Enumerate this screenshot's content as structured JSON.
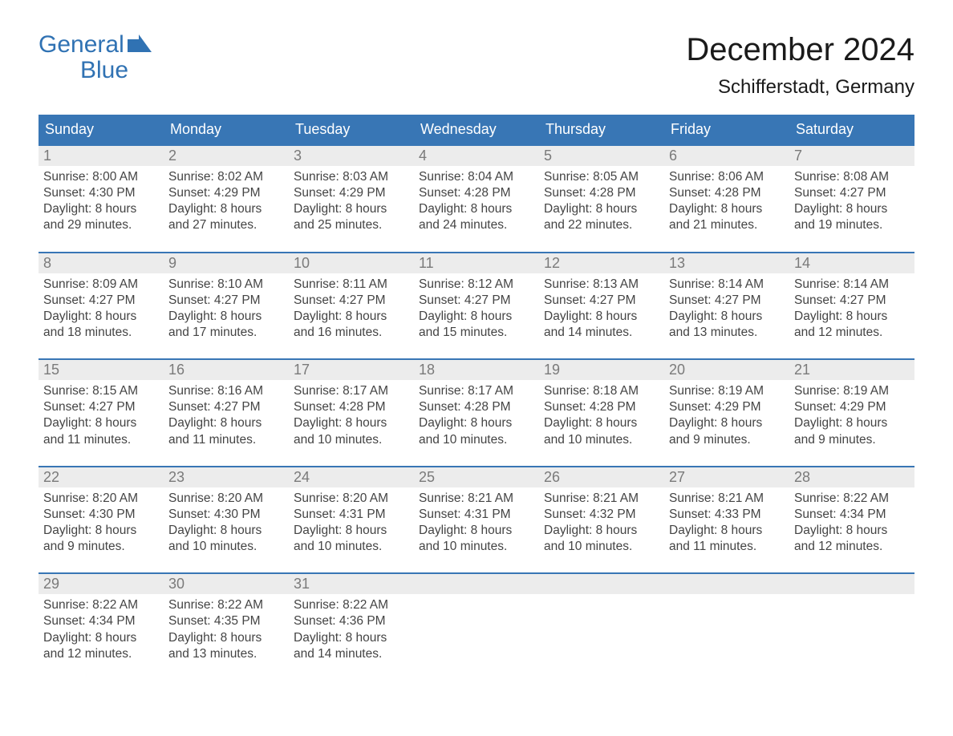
{
  "logo": {
    "word1": "General",
    "word2": "Blue",
    "brand_color": "#3072b3"
  },
  "title": "December 2024",
  "location": "Schifferstadt, Germany",
  "colors": {
    "header_bg": "#3876b5",
    "header_text": "#ffffff",
    "daynum_bg": "#ececec",
    "daynum_text": "#7a7a7a",
    "body_text": "#444444",
    "week_border": "#3876b5",
    "page_bg": "#ffffff"
  },
  "columns": [
    "Sunday",
    "Monday",
    "Tuesday",
    "Wednesday",
    "Thursday",
    "Friday",
    "Saturday"
  ],
  "weeks": [
    [
      {
        "n": "1",
        "sunrise": "Sunrise: 8:00 AM",
        "sunset": "Sunset: 4:30 PM",
        "d1": "Daylight: 8 hours",
        "d2": "and 29 minutes."
      },
      {
        "n": "2",
        "sunrise": "Sunrise: 8:02 AM",
        "sunset": "Sunset: 4:29 PM",
        "d1": "Daylight: 8 hours",
        "d2": "and 27 minutes."
      },
      {
        "n": "3",
        "sunrise": "Sunrise: 8:03 AM",
        "sunset": "Sunset: 4:29 PM",
        "d1": "Daylight: 8 hours",
        "d2": "and 25 minutes."
      },
      {
        "n": "4",
        "sunrise": "Sunrise: 8:04 AM",
        "sunset": "Sunset: 4:28 PM",
        "d1": "Daylight: 8 hours",
        "d2": "and 24 minutes."
      },
      {
        "n": "5",
        "sunrise": "Sunrise: 8:05 AM",
        "sunset": "Sunset: 4:28 PM",
        "d1": "Daylight: 8 hours",
        "d2": "and 22 minutes."
      },
      {
        "n": "6",
        "sunrise": "Sunrise: 8:06 AM",
        "sunset": "Sunset: 4:28 PM",
        "d1": "Daylight: 8 hours",
        "d2": "and 21 minutes."
      },
      {
        "n": "7",
        "sunrise": "Sunrise: 8:08 AM",
        "sunset": "Sunset: 4:27 PM",
        "d1": "Daylight: 8 hours",
        "d2": "and 19 minutes."
      }
    ],
    [
      {
        "n": "8",
        "sunrise": "Sunrise: 8:09 AM",
        "sunset": "Sunset: 4:27 PM",
        "d1": "Daylight: 8 hours",
        "d2": "and 18 minutes."
      },
      {
        "n": "9",
        "sunrise": "Sunrise: 8:10 AM",
        "sunset": "Sunset: 4:27 PM",
        "d1": "Daylight: 8 hours",
        "d2": "and 17 minutes."
      },
      {
        "n": "10",
        "sunrise": "Sunrise: 8:11 AM",
        "sunset": "Sunset: 4:27 PM",
        "d1": "Daylight: 8 hours",
        "d2": "and 16 minutes."
      },
      {
        "n": "11",
        "sunrise": "Sunrise: 8:12 AM",
        "sunset": "Sunset: 4:27 PM",
        "d1": "Daylight: 8 hours",
        "d2": "and 15 minutes."
      },
      {
        "n": "12",
        "sunrise": "Sunrise: 8:13 AM",
        "sunset": "Sunset: 4:27 PM",
        "d1": "Daylight: 8 hours",
        "d2": "and 14 minutes."
      },
      {
        "n": "13",
        "sunrise": "Sunrise: 8:14 AM",
        "sunset": "Sunset: 4:27 PM",
        "d1": "Daylight: 8 hours",
        "d2": "and 13 minutes."
      },
      {
        "n": "14",
        "sunrise": "Sunrise: 8:14 AM",
        "sunset": "Sunset: 4:27 PM",
        "d1": "Daylight: 8 hours",
        "d2": "and 12 minutes."
      }
    ],
    [
      {
        "n": "15",
        "sunrise": "Sunrise: 8:15 AM",
        "sunset": "Sunset: 4:27 PM",
        "d1": "Daylight: 8 hours",
        "d2": "and 11 minutes."
      },
      {
        "n": "16",
        "sunrise": "Sunrise: 8:16 AM",
        "sunset": "Sunset: 4:27 PM",
        "d1": "Daylight: 8 hours",
        "d2": "and 11 minutes."
      },
      {
        "n": "17",
        "sunrise": "Sunrise: 8:17 AM",
        "sunset": "Sunset: 4:28 PM",
        "d1": "Daylight: 8 hours",
        "d2": "and 10 minutes."
      },
      {
        "n": "18",
        "sunrise": "Sunrise: 8:17 AM",
        "sunset": "Sunset: 4:28 PM",
        "d1": "Daylight: 8 hours",
        "d2": "and 10 minutes."
      },
      {
        "n": "19",
        "sunrise": "Sunrise: 8:18 AM",
        "sunset": "Sunset: 4:28 PM",
        "d1": "Daylight: 8 hours",
        "d2": "and 10 minutes."
      },
      {
        "n": "20",
        "sunrise": "Sunrise: 8:19 AM",
        "sunset": "Sunset: 4:29 PM",
        "d1": "Daylight: 8 hours",
        "d2": "and 9 minutes."
      },
      {
        "n": "21",
        "sunrise": "Sunrise: 8:19 AM",
        "sunset": "Sunset: 4:29 PM",
        "d1": "Daylight: 8 hours",
        "d2": "and 9 minutes."
      }
    ],
    [
      {
        "n": "22",
        "sunrise": "Sunrise: 8:20 AM",
        "sunset": "Sunset: 4:30 PM",
        "d1": "Daylight: 8 hours",
        "d2": "and 9 minutes."
      },
      {
        "n": "23",
        "sunrise": "Sunrise: 8:20 AM",
        "sunset": "Sunset: 4:30 PM",
        "d1": "Daylight: 8 hours",
        "d2": "and 10 minutes."
      },
      {
        "n": "24",
        "sunrise": "Sunrise: 8:20 AM",
        "sunset": "Sunset: 4:31 PM",
        "d1": "Daylight: 8 hours",
        "d2": "and 10 minutes."
      },
      {
        "n": "25",
        "sunrise": "Sunrise: 8:21 AM",
        "sunset": "Sunset: 4:31 PM",
        "d1": "Daylight: 8 hours",
        "d2": "and 10 minutes."
      },
      {
        "n": "26",
        "sunrise": "Sunrise: 8:21 AM",
        "sunset": "Sunset: 4:32 PM",
        "d1": "Daylight: 8 hours",
        "d2": "and 10 minutes."
      },
      {
        "n": "27",
        "sunrise": "Sunrise: 8:21 AM",
        "sunset": "Sunset: 4:33 PM",
        "d1": "Daylight: 8 hours",
        "d2": "and 11 minutes."
      },
      {
        "n": "28",
        "sunrise": "Sunrise: 8:22 AM",
        "sunset": "Sunset: 4:34 PM",
        "d1": "Daylight: 8 hours",
        "d2": "and 12 minutes."
      }
    ],
    [
      {
        "n": "29",
        "sunrise": "Sunrise: 8:22 AM",
        "sunset": "Sunset: 4:34 PM",
        "d1": "Daylight: 8 hours",
        "d2": "and 12 minutes."
      },
      {
        "n": "30",
        "sunrise": "Sunrise: 8:22 AM",
        "sunset": "Sunset: 4:35 PM",
        "d1": "Daylight: 8 hours",
        "d2": "and 13 minutes."
      },
      {
        "n": "31",
        "sunrise": "Sunrise: 8:22 AM",
        "sunset": "Sunset: 4:36 PM",
        "d1": "Daylight: 8 hours",
        "d2": "and 14 minutes."
      },
      null,
      null,
      null,
      null
    ]
  ]
}
